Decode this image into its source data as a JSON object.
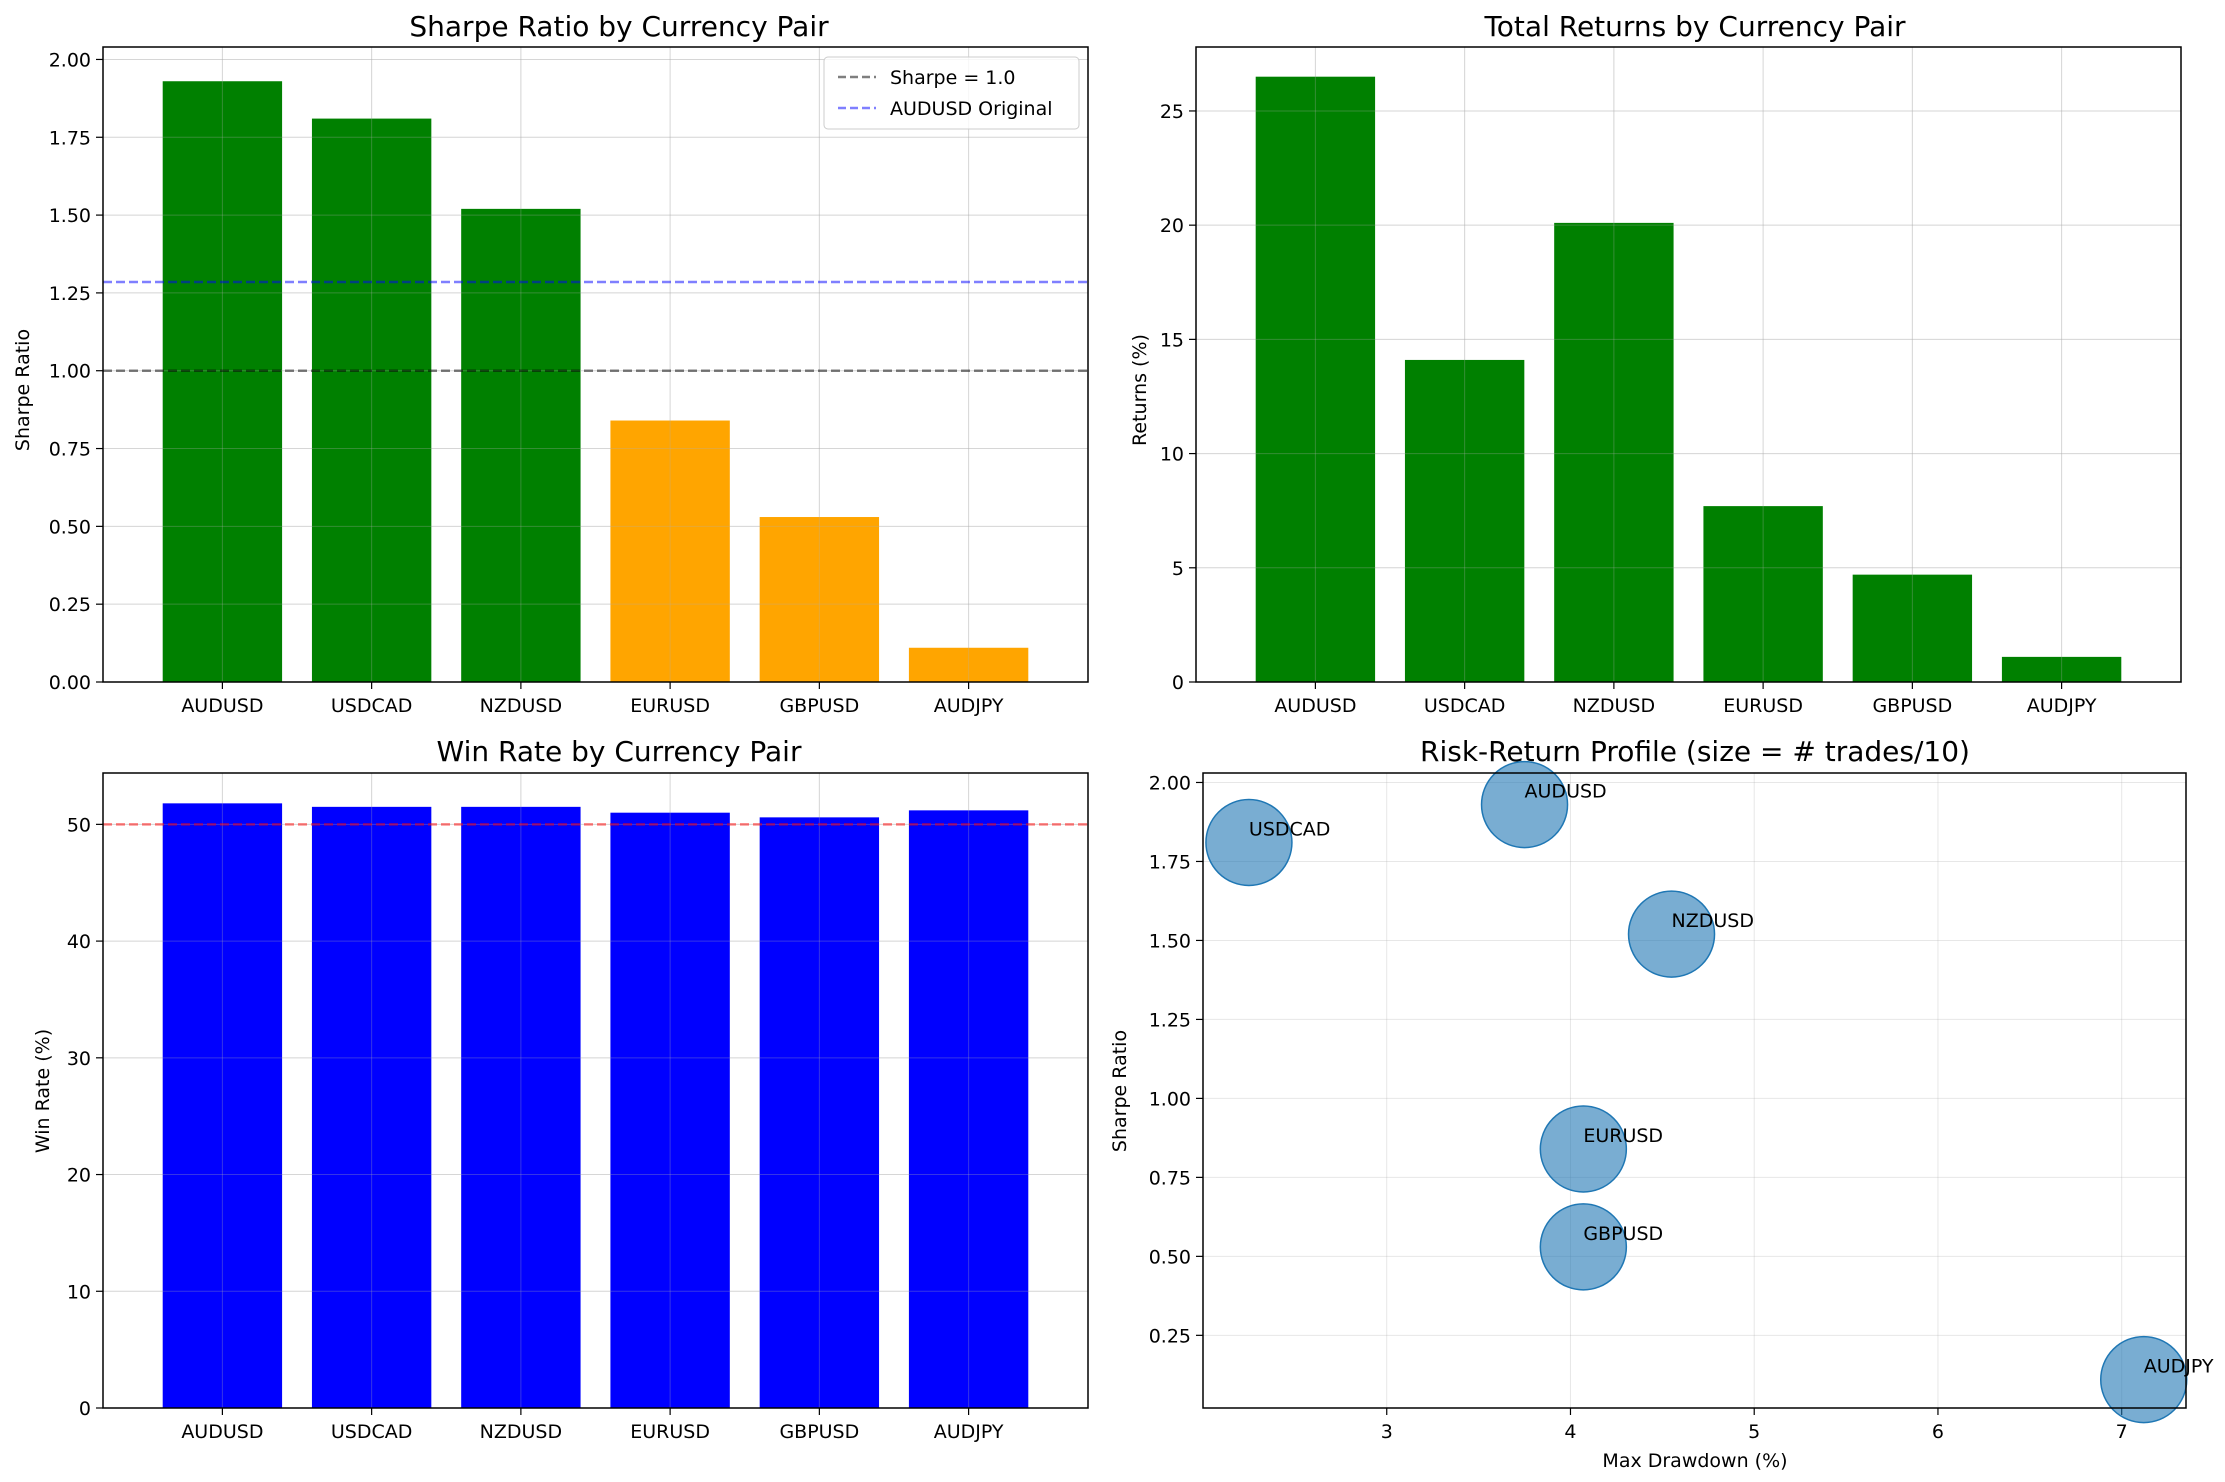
{
  "chart_data": [
    {
      "type": "bar",
      "title": "Sharpe Ratio by Currency Pair",
      "xlabel": "",
      "ylabel": "Sharpe Ratio",
      "categories": [
        "AUDUSD",
        "USDCAD",
        "NZDUSD",
        "EURUSD",
        "GBPUSD",
        "AUDJPY"
      ],
      "values": [
        1.93,
        1.81,
        1.52,
        0.84,
        0.53,
        0.11
      ],
      "bar_colors": [
        "#008000",
        "#008000",
        "#008000",
        "#FFA500",
        "#FFA500",
        "#FFA500"
      ],
      "ylim": [
        0,
        2.04
      ],
      "yticks": [
        "0.00",
        "0.25",
        "0.50",
        "0.75",
        "1.00",
        "1.25",
        "1.50",
        "1.75",
        "2.00"
      ],
      "grid": true,
      "reference_lines": [
        {
          "label": "Sharpe = 1.0",
          "value": 1.0,
          "color": "#000000",
          "opacity": 0.5
        },
        {
          "label": "AUDUSD Original",
          "value": 1.285,
          "color": "#0000ff",
          "opacity": 0.5
        }
      ],
      "legend": "top-right"
    },
    {
      "type": "bar",
      "title": "Total Returns by Currency Pair",
      "xlabel": "",
      "ylabel": "Returns (%)",
      "categories": [
        "AUDUSD",
        "USDCAD",
        "NZDUSD",
        "EURUSD",
        "GBPUSD",
        "AUDJPY"
      ],
      "values": [
        26.5,
        14.1,
        20.1,
        7.7,
        4.7,
        1.1
      ],
      "bar_colors": [
        "#008000",
        "#008000",
        "#008000",
        "#008000",
        "#008000",
        "#008000"
      ],
      "ylim": [
        0,
        27.8
      ],
      "yticks": [
        "0",
        "5",
        "10",
        "15",
        "20",
        "25"
      ],
      "grid": true
    },
    {
      "type": "bar",
      "title": "Win Rate by Currency Pair",
      "xlabel": "",
      "ylabel": "Win Rate (%)",
      "categories": [
        "AUDUSD",
        "USDCAD",
        "NZDUSD",
        "EURUSD",
        "GBPUSD",
        "AUDJPY"
      ],
      "values": [
        51.8,
        51.5,
        51.5,
        51.0,
        50.6,
        51.2
      ],
      "bar_colors": [
        "#0000FF",
        "#0000FF",
        "#0000FF",
        "#0000FF",
        "#0000FF",
        "#0000FF"
      ],
      "ylim": [
        0,
        54.4
      ],
      "yticks": [
        "0",
        "10",
        "20",
        "30",
        "40",
        "50"
      ],
      "grid": true,
      "reference_lines": [
        {
          "label": "",
          "value": 50,
          "color": "#ff0000",
          "opacity": 0.5
        }
      ]
    },
    {
      "type": "scatter",
      "title": "Risk-Return Profile (size = # trades/10)",
      "xlabel": "Max Drawdown (%)",
      "ylabel": "Sharpe Ratio",
      "points": [
        {
          "label": "AUDUSD",
          "x": 3.75,
          "y": 1.93
        },
        {
          "label": "USDCAD",
          "x": 2.25,
          "y": 1.81
        },
        {
          "label": "NZDUSD",
          "x": 4.55,
          "y": 1.52
        },
        {
          "label": "EURUSD",
          "x": 4.07,
          "y": 0.84
        },
        {
          "label": "GBPUSD",
          "x": 4.07,
          "y": 0.53
        },
        {
          "label": "AUDJPY",
          "x": 7.12,
          "y": 0.11
        }
      ],
      "marker_color": "#1f77b4",
      "xlim": [
        2.0,
        7.35
      ],
      "ylim": [
        0.02,
        2.03
      ],
      "xticks": [
        "3",
        "4",
        "5",
        "6",
        "7"
      ],
      "yticks": [
        "0.25",
        "0.50",
        "0.75",
        "1.00",
        "1.25",
        "1.50",
        "1.75",
        "2.00"
      ],
      "grid": true
    }
  ]
}
